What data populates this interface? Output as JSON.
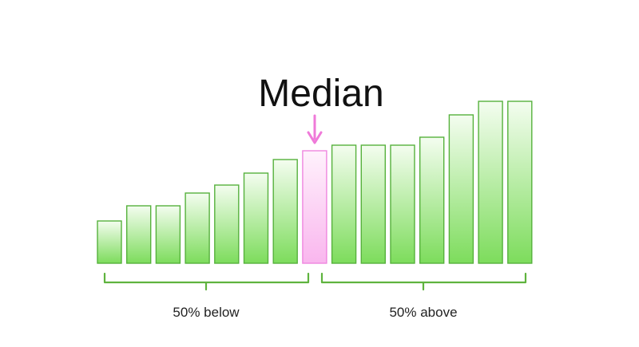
{
  "title": "Median",
  "below_label": "50% below",
  "above_label": "50% above",
  "median_index": 7,
  "values": [
    53,
    72,
    72,
    88,
    98,
    113,
    130,
    141,
    148,
    148,
    148,
    158,
    186,
    203,
    203
  ],
  "colors": {
    "bar_light": "#f4fdf0",
    "bar_dark": "#7ddc5c",
    "bar_stroke": "#56b13c",
    "median_light": "#fff2fc",
    "median_dark": "#f9b6ee",
    "median_stroke": "#ef86df",
    "arrow": "#ef7ad9",
    "bracket": "#5fb33e"
  },
  "icons": {
    "median_arrow": "arrow-down-icon"
  }
}
